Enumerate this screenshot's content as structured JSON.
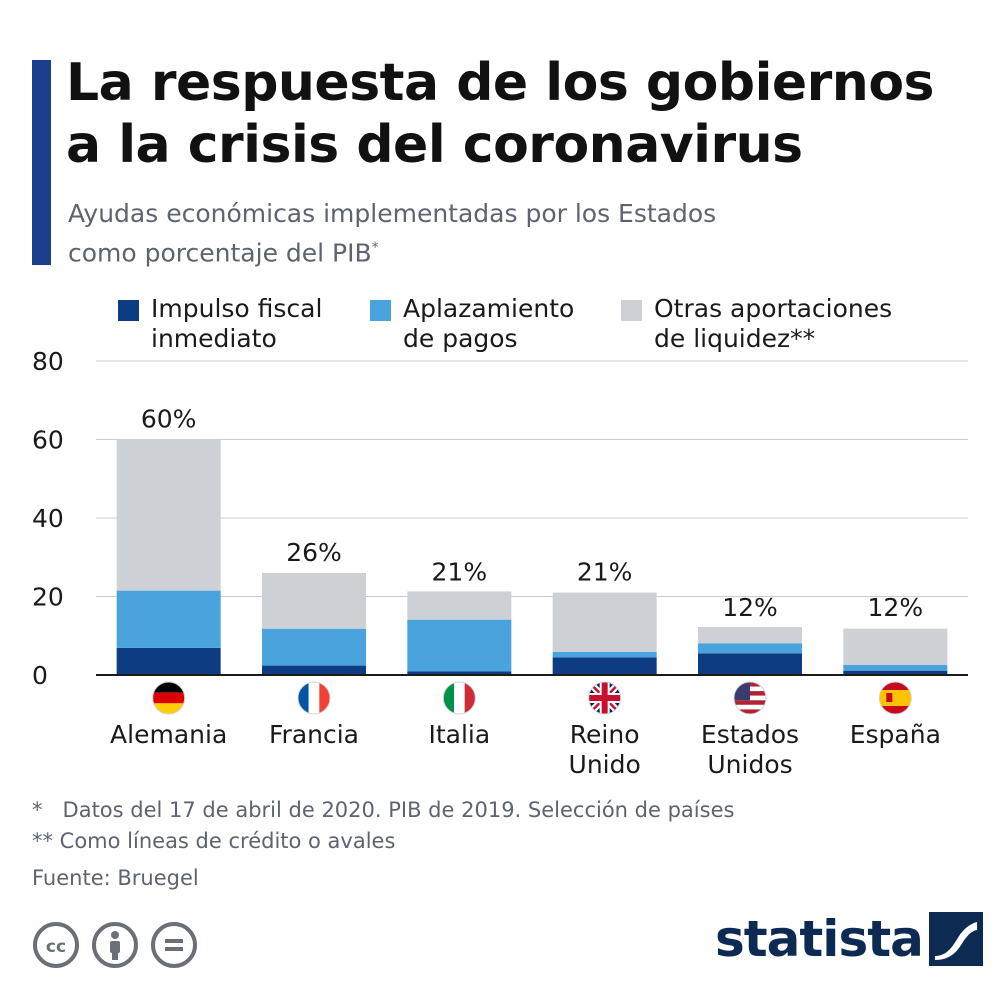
{
  "header": {
    "title_line1": "La respuesta de los gobiernos",
    "title_line2": "a la crisis del coronavirus",
    "subtitle_line1": "Ayudas económicas implementadas por los Estados",
    "subtitle_line2": "como porcentaje del PIB",
    "subtitle_mark": "*"
  },
  "legend": [
    {
      "line1": "Impulso fiscal",
      "line2": "inmediato",
      "color": "#0e3c82"
    },
    {
      "line1": "Aplazamiento",
      "line2": "de pagos",
      "color": "#4aa3dc"
    },
    {
      "line1": "Otras aportaciones",
      "line2": "de liquidez**",
      "color": "#cdd1d6"
    }
  ],
  "chart_data": {
    "type": "bar",
    "stacked": true,
    "title": "La respuesta de los gobiernos a la crisis del coronavirus",
    "subtitle": "Ayudas económicas implementadas por los Estados como porcentaje del PIB*",
    "ylim": [
      0,
      80
    ],
    "yticks": [
      "0",
      "20",
      "40",
      "60",
      "80"
    ],
    "ytick_values": [
      0,
      20,
      40,
      60,
      80
    ],
    "grid": true,
    "categories": [
      {
        "line1": "Alemania",
        "line2": "",
        "flag": "germany-flag"
      },
      {
        "line1": "Francia",
        "line2": "",
        "flag": "france-flag"
      },
      {
        "line1": "Italia",
        "line2": "",
        "flag": "italy-flag"
      },
      {
        "line1": "Reino",
        "line2": "Unido",
        "flag": "uk-flag"
      },
      {
        "line1": "Estados",
        "line2": "Unidos",
        "flag": "usa-flag"
      },
      {
        "line1": "España",
        "line2": "",
        "flag": "spain-flag"
      }
    ],
    "series": [
      {
        "name": "Impulso fiscal inmediato",
        "color": "#0e3c82",
        "values": [
          6.9,
          2.4,
          0.9,
          4.5,
          5.5,
          1.1
        ]
      },
      {
        "name": "Aplazamiento de pagos",
        "color": "#4aa3dc",
        "values": [
          14.6,
          9.4,
          13.2,
          1.4,
          2.6,
          1.5
        ]
      },
      {
        "name": "Otras aportaciones de liquidez**",
        "color": "#cdd1d6",
        "values": [
          38.5,
          14.2,
          7.2,
          15.1,
          4.1,
          9.2
        ]
      }
    ],
    "totals": [
      "60%",
      "26%",
      "21%",
      "21%",
      "12%",
      "12%"
    ],
    "total_values": [
      60,
      26,
      21,
      21,
      12,
      12
    ]
  },
  "footnotes": {
    "note1": "*   Datos del 17 de abril de 2020. PIB de 2019. Selección de países",
    "note2": "** Como líneas de crédito o avales",
    "source": "Fuente: Bruegel"
  },
  "branding": {
    "logo_text": "statista",
    "license_icons": [
      "cc-icon",
      "by-icon",
      "nd-icon"
    ]
  }
}
